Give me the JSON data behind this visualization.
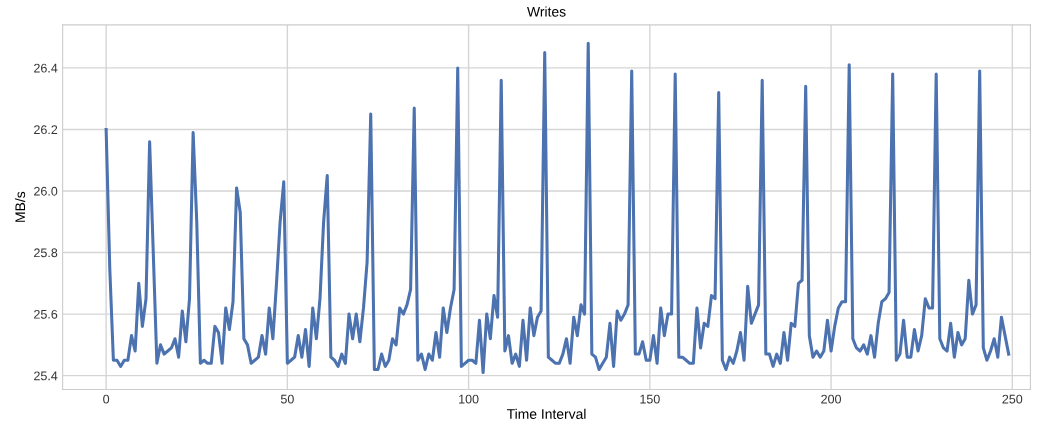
{
  "chart_data": {
    "type": "line",
    "title": "Writes",
    "xlabel": "Time Interval",
    "ylabel": "MB/s",
    "xlim": [
      -12,
      255
    ],
    "ylim": [
      25.355,
      26.54
    ],
    "xticks": [
      0,
      50,
      100,
      150,
      200,
      250
    ],
    "yticks": [
      25.4,
      25.6,
      25.8,
      {
        "value": 26.0,
        "label": "26.0"
      },
      26.2,
      26.4
    ],
    "grid": true,
    "marker": "none",
    "line_style": "solid",
    "series": [
      {
        "color": "#4c72b0",
        "x": [
          0,
          1,
          2,
          3,
          4,
          5,
          6,
          7,
          8,
          9,
          10,
          11,
          12,
          13,
          14,
          15,
          16,
          17,
          18,
          19,
          20,
          21,
          22,
          23,
          24,
          25,
          26,
          27,
          28,
          29,
          30,
          31,
          32,
          33,
          34,
          35,
          36,
          37,
          38,
          39,
          40,
          41,
          42,
          43,
          44,
          45,
          46,
          47,
          48,
          49,
          50,
          51,
          52,
          53,
          54,
          55,
          56,
          57,
          58,
          59,
          60,
          61,
          62,
          63,
          64,
          65,
          66,
          67,
          68,
          69,
          70,
          71,
          72,
          73,
          74,
          75,
          76,
          77,
          78,
          79,
          80,
          81,
          82,
          83,
          84,
          85,
          86,
          87,
          88,
          89,
          90,
          91,
          92,
          93,
          94,
          95,
          96,
          97,
          98,
          99,
          100,
          101,
          102,
          103,
          104,
          105,
          106,
          107,
          108,
          109,
          110,
          111,
          112,
          113,
          114,
          115,
          116,
          117,
          118,
          119,
          120,
          121,
          122,
          123,
          124,
          125,
          126,
          127,
          128,
          129,
          130,
          131,
          132,
          133,
          134,
          135,
          136,
          137,
          138,
          139,
          140,
          141,
          142,
          143,
          144,
          145,
          146,
          147,
          148,
          149,
          150,
          151,
          152,
          153,
          154,
          155,
          156,
          157,
          158,
          159,
          160,
          161,
          162,
          163,
          164,
          165,
          166,
          167,
          168,
          169,
          170,
          171,
          172,
          173,
          174,
          175,
          176,
          177,
          178,
          179,
          180,
          181,
          182,
          183,
          184,
          185,
          186,
          187,
          188,
          189,
          190,
          191,
          192,
          193,
          194,
          195,
          196,
          197,
          198,
          199,
          200,
          201,
          202,
          203,
          204,
          205,
          206,
          207,
          208,
          209,
          210,
          211,
          212,
          213,
          214,
          215,
          216,
          217,
          218,
          219,
          220,
          221,
          222,
          223,
          224,
          225,
          226,
          227,
          228,
          229,
          230,
          231,
          232,
          233,
          234,
          235,
          236,
          237,
          238,
          239,
          240,
          241,
          242,
          243,
          244,
          245,
          246,
          247,
          248,
          249
        ],
        "values": [
          26.2,
          25.75,
          25.45,
          25.45,
          25.43,
          25.45,
          25.45,
          25.53,
          25.48,
          25.7,
          25.56,
          25.65,
          26.16,
          25.8,
          25.44,
          25.5,
          25.47,
          25.48,
          25.49,
          25.52,
          25.46,
          25.61,
          25.51,
          25.65,
          26.19,
          25.9,
          25.44,
          25.45,
          25.44,
          25.44,
          25.56,
          25.54,
          25.44,
          25.62,
          25.55,
          25.64,
          26.01,
          25.93,
          25.52,
          25.5,
          25.44,
          25.45,
          25.46,
          25.53,
          25.47,
          25.62,
          25.52,
          25.7,
          25.9,
          26.03,
          25.44,
          25.45,
          25.46,
          25.53,
          25.46,
          25.55,
          25.43,
          25.62,
          25.52,
          25.65,
          25.9,
          26.05,
          25.46,
          25.45,
          25.43,
          25.47,
          25.44,
          25.6,
          25.52,
          25.6,
          25.51,
          25.62,
          25.77,
          26.25,
          25.42,
          25.42,
          25.47,
          25.43,
          25.45,
          25.52,
          25.5,
          25.62,
          25.6,
          25.63,
          25.68,
          26.27,
          25.45,
          25.47,
          25.42,
          25.47,
          25.45,
          25.54,
          25.46,
          25.62,
          25.54,
          25.62,
          25.68,
          26.4,
          25.43,
          25.44,
          25.45,
          25.45,
          25.44,
          25.58,
          25.41,
          25.6,
          25.52,
          25.66,
          25.59,
          26.36,
          25.48,
          25.53,
          25.44,
          25.47,
          25.43,
          25.58,
          25.45,
          25.62,
          25.53,
          25.59,
          25.61,
          26.45,
          25.46,
          25.45,
          25.44,
          25.44,
          25.47,
          25.52,
          25.44,
          25.59,
          25.53,
          25.63,
          25.6,
          26.48,
          25.47,
          25.46,
          25.42,
          25.44,
          25.46,
          25.57,
          25.43,
          25.61,
          25.58,
          25.6,
          25.63,
          26.39,
          25.47,
          25.47,
          25.51,
          25.45,
          25.45,
          25.53,
          25.44,
          25.62,
          25.53,
          25.6,
          25.6,
          26.38,
          25.46,
          25.46,
          25.45,
          25.44,
          25.44,
          25.62,
          25.49,
          25.57,
          25.56,
          25.66,
          25.65,
          26.32,
          25.45,
          25.42,
          25.46,
          25.44,
          25.48,
          25.54,
          25.45,
          25.69,
          25.57,
          25.6,
          25.63,
          26.36,
          25.47,
          25.47,
          25.43,
          25.47,
          25.44,
          25.54,
          25.45,
          25.57,
          25.56,
          25.7,
          25.71,
          26.34,
          25.53,
          25.46,
          25.48,
          25.46,
          25.48,
          25.58,
          25.48,
          25.56,
          25.62,
          25.64,
          25.64,
          26.41,
          25.52,
          25.49,
          25.48,
          25.5,
          25.47,
          25.53,
          25.46,
          25.57,
          25.64,
          25.65,
          25.67,
          26.38,
          25.45,
          25.47,
          25.58,
          25.46,
          25.46,
          25.55,
          25.48,
          25.53,
          25.65,
          25.62,
          25.62,
          26.38,
          25.52,
          25.49,
          25.48,
          25.57,
          25.46,
          25.54,
          25.5,
          25.52,
          25.71,
          25.6,
          25.63,
          26.39,
          25.49,
          25.45,
          25.48,
          25.52,
          25.46,
          25.59,
          25.53,
          25.47
        ]
      }
    ]
  }
}
